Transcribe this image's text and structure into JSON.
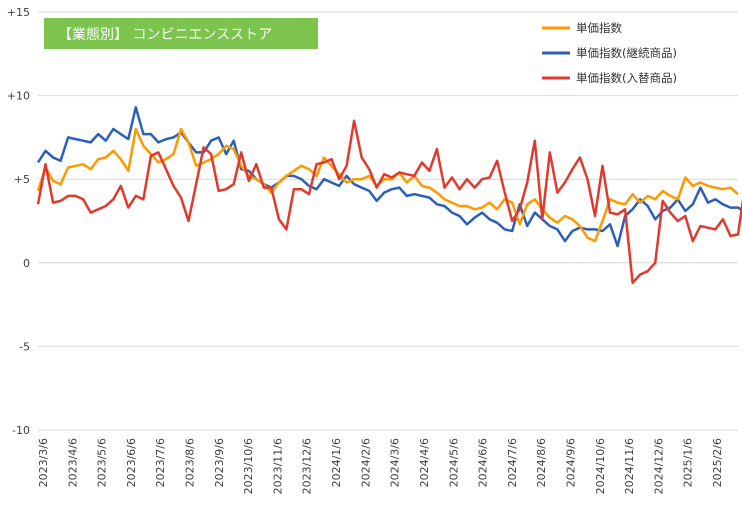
{
  "chart_data": {
    "type": "line",
    "title": "【業態別】 コンビニエンスストア",
    "xlabel": "",
    "ylabel": "",
    "ylim": [
      -10,
      15
    ],
    "y_ticks": [
      -10,
      -5,
      0,
      5,
      10,
      15
    ],
    "y_tick_labels": [
      "-10",
      "-5",
      "0",
      "+5",
      "+10",
      "+15"
    ],
    "grid": true,
    "legend_position": "top-right",
    "x_tick_labels": [
      "2023/3/6",
      "2023/4/6",
      "2023/5/6",
      "2023/6/6",
      "2023/7/6",
      "2023/8/6",
      "2023/9/6",
      "2023/10/6",
      "2023/11/6",
      "2023/12/6",
      "2024/1/6",
      "2024/2/6",
      "2024/3/6",
      "2024/4/6",
      "2024/5/6",
      "2024/6/6",
      "2024/7/6",
      "2024/8/6",
      "2024/9/6",
      "2024/10/6",
      "2024/11/6",
      "2024/12/6",
      "2025/1/6",
      "2025/2/6"
    ],
    "series": [
      {
        "name": "単価指数",
        "color": "#ff9900",
        "values": [
          4.3,
          5.7,
          4.9,
          4.7,
          5.7,
          5.8,
          5.9,
          5.6,
          6.2,
          6.3,
          6.7,
          6.2,
          5.5,
          8.0,
          7.0,
          6.5,
          6.0,
          6.2,
          6.5,
          8.0,
          7.2,
          5.8,
          6.0,
          6.2,
          6.5,
          7.0,
          6.8,
          5.8,
          5.2,
          5.0,
          4.7,
          4.2,
          4.8,
          5.2,
          5.5,
          5.8,
          5.6,
          5.2,
          6.3,
          5.8,
          5.3,
          4.8,
          5.0,
          5.0,
          5.2,
          4.6,
          5.0,
          5.0,
          5.4,
          4.8,
          5.2,
          4.6,
          4.5,
          4.2,
          3.8,
          3.6,
          3.4,
          3.4,
          3.2,
          3.3,
          3.6,
          3.2,
          3.8,
          3.6,
          2.3,
          3.5,
          3.8,
          3.2,
          2.7,
          2.4,
          2.8,
          2.6,
          2.2,
          1.5,
          1.3,
          2.5,
          3.8,
          3.6,
          3.5,
          4.1,
          3.6,
          4.0,
          3.8,
          4.3,
          4.0,
          3.8,
          5.1,
          4.6,
          4.8,
          4.6,
          4.5,
          4.4,
          4.5,
          4.1
        ]
      },
      {
        "name": "単価指数(継続商品)",
        "color": "#2d5fb9",
        "values": [
          6.0,
          6.7,
          6.3,
          6.1,
          7.5,
          7.4,
          7.3,
          7.2,
          7.7,
          7.3,
          8.0,
          7.7,
          7.4,
          9.3,
          7.7,
          7.7,
          7.2,
          7.4,
          7.5,
          7.8,
          7.2,
          6.6,
          6.6,
          7.3,
          7.5,
          6.5,
          7.3,
          5.6,
          5.5,
          5.0,
          4.7,
          4.5,
          4.8,
          5.2,
          5.2,
          5.0,
          4.6,
          4.4,
          5.0,
          4.8,
          4.6,
          5.2,
          4.7,
          4.5,
          4.3,
          3.7,
          4.2,
          4.4,
          4.5,
          4.0,
          4.1,
          4.0,
          3.9,
          3.5,
          3.4,
          3.0,
          2.8,
          2.3,
          2.7,
          3.0,
          2.6,
          2.4,
          2.0,
          1.9,
          3.5,
          2.2,
          3.0,
          2.6,
          2.2,
          2.0,
          1.3,
          1.9,
          2.1,
          2.0,
          2.0,
          1.9,
          2.3,
          1.0,
          2.8,
          3.2,
          3.8,
          3.4,
          2.6,
          3.1,
          3.3,
          3.8,
          3.1,
          3.5,
          4.5,
          3.6,
          3.8,
          3.5,
          3.3,
          3.3,
          3.0
        ]
      },
      {
        "name": "単価指数(入替商品)",
        "color": "#e03a2e",
        "values": [
          3.5,
          5.9,
          3.6,
          3.7,
          4.0,
          4.0,
          3.8,
          3.0,
          3.2,
          3.4,
          3.8,
          4.6,
          3.3,
          4.0,
          3.8,
          6.4,
          6.6,
          5.6,
          4.6,
          3.9,
          2.5,
          4.7,
          6.9,
          6.5,
          4.3,
          4.4,
          4.7,
          6.6,
          4.9,
          5.9,
          4.5,
          4.5,
          2.6,
          2.0,
          4.4,
          4.4,
          4.1,
          5.9,
          6.0,
          6.2,
          5.0,
          5.8,
          8.5,
          6.3,
          5.6,
          4.5,
          5.3,
          5.1,
          5.4,
          5.3,
          5.2,
          6.0,
          5.5,
          6.8,
          4.5,
          5.1,
          4.4,
          5.0,
          4.5,
          5.0,
          5.1,
          6.1,
          4.2,
          2.5,
          3.2,
          4.8,
          7.3,
          2.6,
          6.6,
          4.2,
          4.8,
          5.6,
          6.3,
          5.0,
          2.8,
          5.8,
          3.0,
          2.9,
          3.2,
          -1.2,
          -0.7,
          -0.5,
          0.0,
          3.7,
          3.0,
          2.5,
          2.8,
          1.3,
          2.2,
          2.1,
          2.0,
          2.6,
          1.6,
          1.7,
          4.8,
          4.1,
          4.3,
          4.1,
          3.2,
          3.6,
          4.1,
          3.7,
          3.4
        ]
      }
    ],
    "title_box_color": "#7cc44e"
  }
}
